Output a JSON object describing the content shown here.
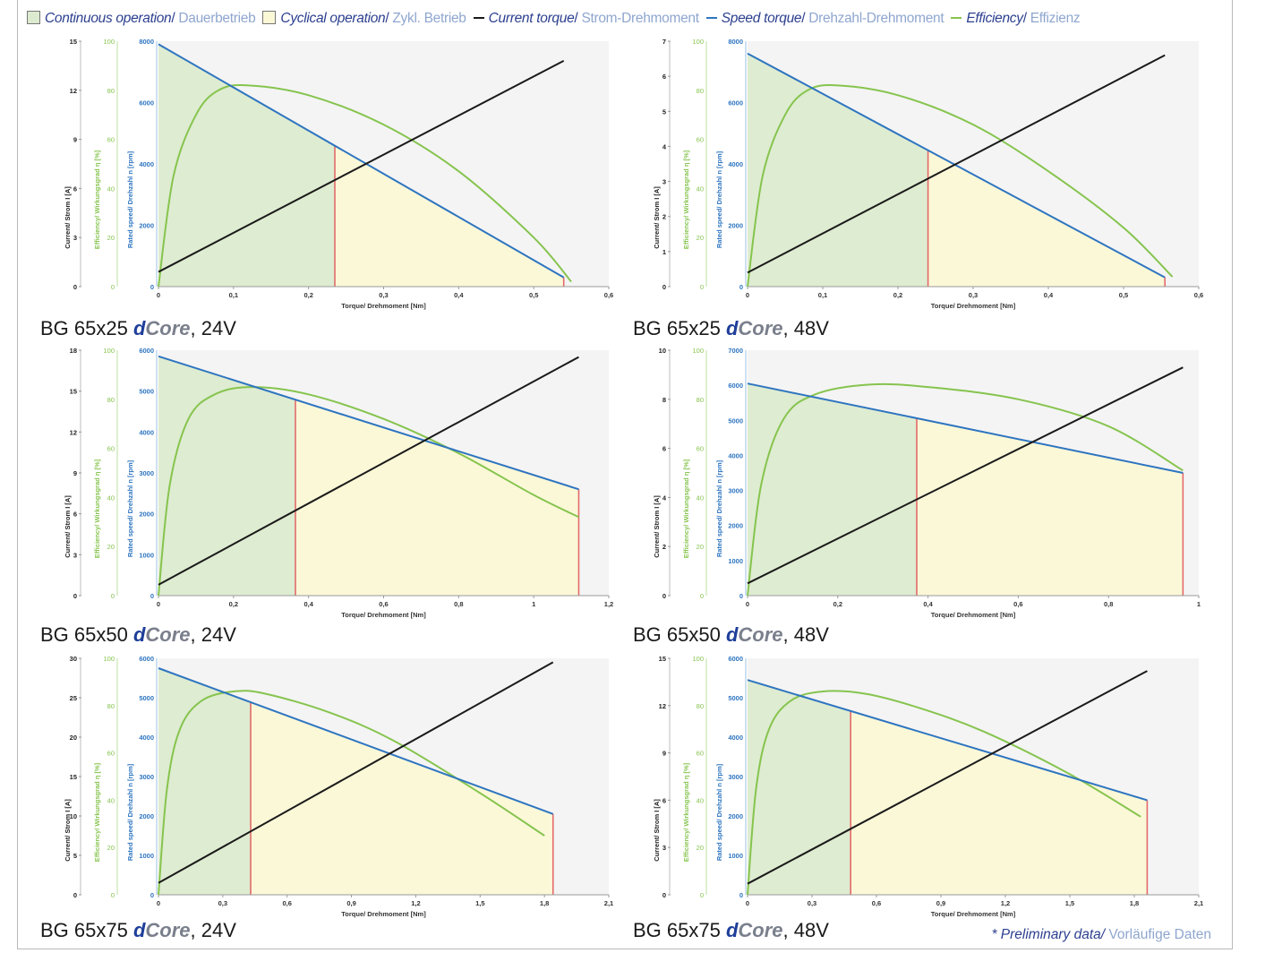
{
  "legend": {
    "continuous_en": "Continuous operation",
    "continuous_de": "Dauerbetrieb",
    "cyclical_en": "Cyclical operation",
    "cyclical_de": "Zykl. Betrieb",
    "current_en": "Current torque",
    "current_de": "Strom-Drehmoment",
    "speed_en": "Speed torque",
    "speed_de": "Drehzahl-Drehmoment",
    "efficiency_en": "Efficiency",
    "efficiency_de": "Effizienz",
    "separator": "/",
    "colors": {
      "continuous": "#dcebcf",
      "cyclical": "#fbf8d6",
      "current": "#1a1a1a",
      "speed": "#2e75c0",
      "efficiency": "#86c44e"
    }
  },
  "footnote": {
    "en": "* Preliminary data",
    "separator": "/",
    "de": "Vorläufige Daten"
  },
  "chart_data": [
    {
      "type": "line",
      "caption": {
        "prefix": "BG 65x25 ",
        "brand_d": "d",
        "brand_core": "Core",
        "suffix": ", 24V"
      },
      "xlabel": "Torque/ Drehmoment [Nm]",
      "ylabel_current": "Current/ Strom I [A]",
      "ylabel_efficiency": "Efficiency/ Wirkungsgrad η [%]",
      "ylabel_speed": "Rated speed/ Drehzahl n [rpm]",
      "xlim": [
        0,
        0.6
      ],
      "xticks": [
        "0",
        "0,1",
        "0,2",
        "0,3",
        "0,4",
        "0,5",
        "0,6"
      ],
      "current_ticks": [
        "0",
        "3",
        "6",
        "9",
        "12",
        "15"
      ],
      "current_lim": [
        0,
        15
      ],
      "efficiency_ticks": [
        "0",
        "20",
        "40",
        "60",
        "80",
        "100"
      ],
      "efficiency_lim": [
        0,
        100
      ],
      "speed_ticks": [
        "0",
        "2000",
        "4000",
        "6000",
        "8000"
      ],
      "speed_lim": [
        0,
        8000
      ],
      "continuous_limit": 0.235,
      "max_torque": 0.54,
      "speed": {
        "x": [
          0,
          0.54
        ],
        "y": [
          7900,
          300
        ]
      },
      "current": {
        "x": [
          0,
          0.54
        ],
        "y": [
          0.9,
          13.8
        ]
      },
      "efficiency": {
        "x": [
          0,
          0.02,
          0.05,
          0.08,
          0.12,
          0.2,
          0.3,
          0.4,
          0.5,
          0.55
        ],
        "y": [
          0,
          45,
          70,
          80,
          82,
          78,
          66,
          47,
          20,
          2
        ]
      }
    },
    {
      "type": "line",
      "caption": {
        "prefix": "BG 65x25 ",
        "brand_d": "d",
        "brand_core": "Core",
        "suffix": ", 48V"
      },
      "xlabel": "Torque/ Drehmoment [Nm]",
      "ylabel_current": "Current/ Strom I [A]",
      "ylabel_efficiency": "Efficiency/ Wirkungsgrad η [%]",
      "ylabel_speed": "Rated speed/ Drehzahl n [rpm]",
      "xlim": [
        0,
        0.6
      ],
      "xticks": [
        "0",
        "0,1",
        "0,2",
        "0,3",
        "0,4",
        "0,5",
        "0,6"
      ],
      "current_ticks": [
        "0",
        "1",
        "2",
        "3",
        "4",
        "5",
        "6",
        "7"
      ],
      "current_lim": [
        0,
        7
      ],
      "efficiency_ticks": [
        "0",
        "20",
        "40",
        "60",
        "80",
        "100"
      ],
      "efficiency_lim": [
        0,
        100
      ],
      "speed_ticks": [
        "0",
        "2000",
        "4000",
        "6000",
        "8000"
      ],
      "speed_lim": [
        0,
        8000
      ],
      "continuous_limit": 0.24,
      "max_torque": 0.555,
      "speed": {
        "x": [
          0,
          0.555
        ],
        "y": [
          7600,
          300
        ]
      },
      "current": {
        "x": [
          0,
          0.555
        ],
        "y": [
          0.4,
          6.6
        ]
      },
      "efficiency": {
        "x": [
          0,
          0.02,
          0.05,
          0.08,
          0.12,
          0.2,
          0.3,
          0.4,
          0.5,
          0.565
        ],
        "y": [
          0,
          45,
          70,
          80,
          82,
          78,
          66,
          47,
          24,
          4
        ]
      }
    },
    {
      "type": "line",
      "caption": {
        "prefix": "BG 65x50 ",
        "brand_d": "d",
        "brand_core": "Core",
        "suffix": ", 24V"
      },
      "xlabel": "Torque/ Drehmoment [Nm]",
      "ylabel_current": "Current/ Strom I [A]",
      "ylabel_efficiency": "Efficiency/ Wirkungsgrad η [%]",
      "ylabel_speed": "Rated speed/ Drehzahl n [rpm]",
      "xlim": [
        0,
        1.2
      ],
      "xticks": [
        "0",
        "0,2",
        "0,4",
        "0,6",
        "0,8",
        "1",
        "1,2"
      ],
      "current_ticks": [
        "0",
        "3",
        "6",
        "9",
        "12",
        "15",
        "18"
      ],
      "current_lim": [
        0,
        18
      ],
      "efficiency_ticks": [
        "0",
        "20",
        "40",
        "60",
        "80",
        "100"
      ],
      "efficiency_lim": [
        0,
        100
      ],
      "speed_ticks": [
        "0",
        "1000",
        "2000",
        "3000",
        "4000",
        "5000",
        "6000"
      ],
      "speed_lim": [
        0,
        6000
      ],
      "continuous_limit": 0.365,
      "max_torque": 1.12,
      "speed": {
        "x": [
          0,
          1.12
        ],
        "y": [
          5850,
          2600
        ]
      },
      "current": {
        "x": [
          0,
          1.12
        ],
        "y": [
          0.8,
          17.5
        ]
      },
      "efficiency": {
        "x": [
          0,
          0.03,
          0.08,
          0.15,
          0.25,
          0.4,
          0.6,
          0.8,
          1.0,
          1.12
        ],
        "y": [
          0,
          45,
          72,
          82,
          85,
          82,
          72,
          58,
          41,
          32
        ]
      }
    },
    {
      "type": "line",
      "caption": {
        "prefix": "BG 65x50 ",
        "brand_d": "d",
        "brand_core": "Core",
        "suffix": ", 48V"
      },
      "xlabel": "Torque/ Drehmoment [Nm]",
      "ylabel_current": "Current/ Strom I [A]",
      "ylabel_efficiency": "Efficiency/ Wirkungsgrad η [%]",
      "ylabel_speed": "Rated speed/ Drehzahl n [rpm]",
      "xlim": [
        0,
        1
      ],
      "xticks": [
        "0",
        "0,2",
        "0,4",
        "0,6",
        "0,8",
        "1"
      ],
      "current_ticks": [
        "0",
        "2",
        "4",
        "6",
        "8",
        "10"
      ],
      "current_lim": [
        0,
        10
      ],
      "efficiency_ticks": [
        "0",
        "20",
        "40",
        "60",
        "80",
        "100"
      ],
      "efficiency_lim": [
        0,
        100
      ],
      "speed_ticks": [
        "0",
        "1000",
        "2000",
        "3000",
        "4000",
        "5000",
        "6000",
        "7000"
      ],
      "speed_lim": [
        0,
        7000
      ],
      "continuous_limit": 0.375,
      "max_torque": 0.965,
      "speed": {
        "x": [
          0,
          0.965
        ],
        "y": [
          6050,
          3500
        ]
      },
      "current": {
        "x": [
          0,
          0.965
        ],
        "y": [
          0.5,
          9.3
        ]
      },
      "efficiency": {
        "x": [
          0,
          0.03,
          0.08,
          0.15,
          0.27,
          0.4,
          0.6,
          0.8,
          0.965
        ],
        "y": [
          0,
          45,
          72,
          82,
          86,
          85,
          80,
          69,
          51
        ]
      }
    },
    {
      "type": "line",
      "caption": {
        "prefix": "BG 65x75 ",
        "brand_d": "d",
        "brand_core": "Core",
        "suffix": ", 24V"
      },
      "xlabel": "Torque/ Drehmoment [Nm]",
      "ylabel_current": "Current/ Strom I [A]",
      "ylabel_efficiency": "Efficiency/ Wirkungsgrad η [%]",
      "ylabel_speed": "Rated speed/ Drehzahl n [rpm]",
      "xlim": [
        0,
        2.1
      ],
      "xticks": [
        "0",
        "0,3",
        "0,6",
        "0,9",
        "1,2",
        "1,5",
        "1,8",
        "2,1"
      ],
      "current_ticks": [
        "0",
        "5",
        "10",
        "15",
        "20",
        "25",
        "30"
      ],
      "current_lim": [
        0,
        30
      ],
      "efficiency_ticks": [
        "0",
        "20",
        "40",
        "60",
        "80",
        "100"
      ],
      "efficiency_lim": [
        0,
        100
      ],
      "speed_ticks": [
        "0",
        "1000",
        "2000",
        "3000",
        "4000",
        "5000",
        "6000"
      ],
      "speed_lim": [
        0,
        6000
      ],
      "continuous_limit": 0.43,
      "max_torque": 1.84,
      "speed": {
        "x": [
          0,
          1.84
        ],
        "y": [
          5750,
          2050
        ]
      },
      "current": {
        "x": [
          0,
          1.84
        ],
        "y": [
          1.5,
          29.5
        ]
      },
      "efficiency": {
        "x": [
          0,
          0.04,
          0.1,
          0.2,
          0.35,
          0.5,
          0.8,
          1.1,
          1.5,
          1.8
        ],
        "y": [
          0,
          45,
          70,
          82,
          86,
          85,
          77,
          65,
          43,
          25
        ]
      }
    },
    {
      "type": "line",
      "caption": {
        "prefix": "BG 65x75 ",
        "brand_d": "d",
        "brand_core": "Core",
        "suffix": ", 48V"
      },
      "xlabel": "Torque/ Drehmoment [Nm]",
      "ylabel_current": "Current/ Strom I [A]",
      "ylabel_efficiency": "Efficiency/ Wirkungsgrad η [%]",
      "ylabel_speed": "Rated speed/ Drehzahl n [rpm]",
      "xlim": [
        0,
        2.1
      ],
      "xticks": [
        "0",
        "0,3",
        "0,6",
        "0,9",
        "1,2",
        "1,5",
        "1,8",
        "2,1"
      ],
      "current_ticks": [
        "0",
        "3",
        "6",
        "9",
        "12",
        "15"
      ],
      "current_lim": [
        0,
        15
      ],
      "efficiency_ticks": [
        "0",
        "20",
        "40",
        "60",
        "80",
        "100"
      ],
      "efficiency_lim": [
        0,
        100
      ],
      "speed_ticks": [
        "0",
        "1000",
        "2000",
        "3000",
        "4000",
        "5000",
        "6000"
      ],
      "speed_lim": [
        0,
        6000
      ],
      "continuous_limit": 0.48,
      "max_torque": 1.86,
      "speed": {
        "x": [
          0,
          1.86
        ],
        "y": [
          5450,
          2400
        ]
      },
      "current": {
        "x": [
          0,
          1.86
        ],
        "y": [
          0.7,
          14.2
        ]
      },
      "efficiency": {
        "x": [
          0,
          0.04,
          0.1,
          0.2,
          0.35,
          0.55,
          0.8,
          1.1,
          1.5,
          1.83
        ],
        "y": [
          0,
          45,
          70,
          82,
          86,
          85,
          79,
          69,
          51,
          33
        ]
      }
    }
  ]
}
